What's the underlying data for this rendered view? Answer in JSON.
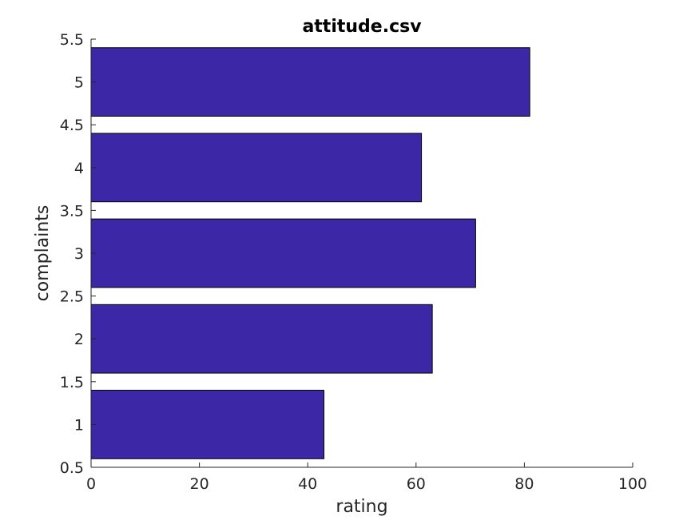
{
  "chart_data": {
    "type": "bar",
    "orientation": "horizontal",
    "title": "attitude.csv",
    "xlabel": "rating",
    "ylabel": "complaints",
    "categories": [
      1,
      2,
      3,
      4,
      5
    ],
    "values": [
      43,
      63,
      71,
      61,
      81
    ],
    "xlim": [
      0,
      100
    ],
    "ylim": [
      0.5,
      5.5
    ],
    "xticks": [
      0,
      20,
      40,
      60,
      80,
      100
    ],
    "yticks": [
      0.5,
      1,
      1.5,
      2,
      2.5,
      3,
      3.5,
      4,
      4.5,
      5,
      5.5
    ],
    "bar_color": "#3c27a6",
    "grid": false,
    "legend": "none"
  }
}
